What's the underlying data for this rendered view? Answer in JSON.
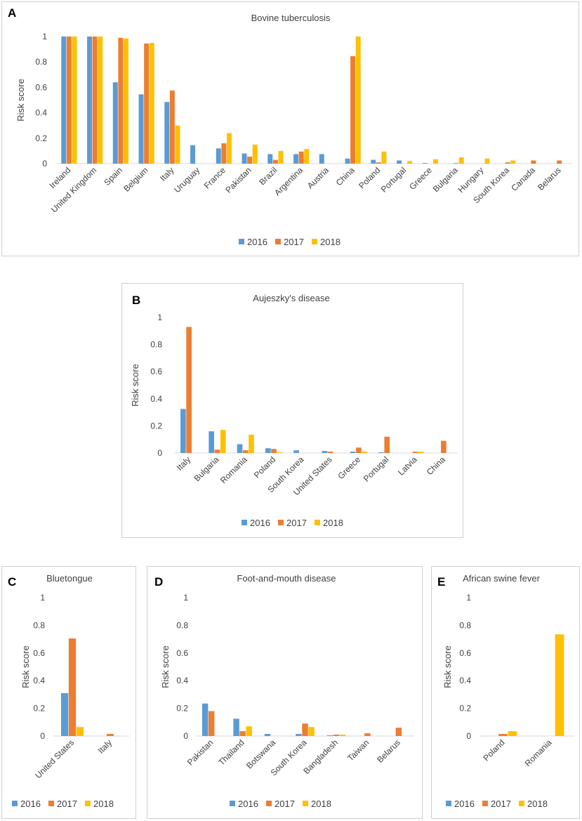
{
  "colors": {
    "2016": "#5b9bd5",
    "2017": "#ed7d31",
    "2018": "#ffc000"
  },
  "chart_data": [
    {
      "id": "A",
      "panel_label": "A",
      "type": "bar",
      "title": "Bovine tuberculosis",
      "ylabel": "Risk score",
      "xlabel": "",
      "ylim": [
        0,
        1
      ],
      "yticks": [
        "0",
        "0.2",
        "0.4",
        "0.6",
        "0.8",
        "1"
      ],
      "legend": [
        "2016",
        "2017",
        "2018"
      ],
      "categories": [
        "Ireland",
        "United Kingdom",
        "Spain",
        "Belgium",
        "Italy",
        "Uruguay",
        "France",
        "Pakistan",
        "Brazil",
        "Argentina",
        "Austria",
        "China",
        "Poland",
        "Portugal",
        "Greece",
        "Bulgaria",
        "Hungary",
        "South Korea",
        "Canada",
        "Belarus"
      ],
      "series": [
        {
          "name": "2016",
          "values": [
            1.0,
            1.0,
            0.64,
            0.545,
            0.485,
            0.145,
            0.12,
            0.08,
            0.075,
            0.075,
            0.075,
            0.04,
            0.03,
            0.025,
            0.005,
            0.0,
            0.0,
            0.0,
            0.0,
            0.0
          ]
        },
        {
          "name": "2017",
          "values": [
            1.0,
            1.0,
            0.99,
            0.945,
            0.575,
            0.0,
            0.16,
            0.055,
            0.03,
            0.095,
            0.0,
            0.845,
            0.01,
            0.0,
            0.0,
            0.005,
            0.0,
            0.01,
            0.025,
            0.025
          ]
        },
        {
          "name": "2018",
          "values": [
            1.0,
            1.0,
            0.985,
            0.95,
            0.3,
            0.0,
            0.24,
            0.15,
            0.1,
            0.115,
            0.0,
            1.0,
            0.095,
            0.02,
            0.035,
            0.05,
            0.04,
            0.025,
            0.0,
            0.0
          ]
        }
      ]
    },
    {
      "id": "B",
      "panel_label": "B",
      "type": "bar",
      "title": "Aujeszky's disease",
      "ylabel": "Risk score",
      "xlabel": "",
      "ylim": [
        0,
        1
      ],
      "yticks": [
        "0",
        "0.2",
        "0.4",
        "0.6",
        "0.8",
        "1"
      ],
      "legend": [
        "2016",
        "2017",
        "2018"
      ],
      "categories": [
        "Italy",
        "Bulgaria",
        "Romania",
        "Poland",
        "South Korea",
        "United States",
        "Greece",
        "Portugal",
        "Latvia",
        "China"
      ],
      "series": [
        {
          "name": "2016",
          "values": [
            0.325,
            0.16,
            0.065,
            0.035,
            0.02,
            0.015,
            0.01,
            0.005,
            0.0,
            0.0
          ]
        },
        {
          "name": "2017",
          "values": [
            0.93,
            0.025,
            0.02,
            0.03,
            0.0,
            0.01,
            0.04,
            0.12,
            0.01,
            0.09
          ]
        },
        {
          "name": "2018",
          "values": [
            0.0,
            0.17,
            0.135,
            0.005,
            0.0,
            0.0,
            0.01,
            0.0,
            0.01,
            0.0
          ]
        }
      ]
    },
    {
      "id": "C",
      "panel_label": "C",
      "type": "bar",
      "title": "Bluetongue",
      "ylabel": "Risk score",
      "xlabel": "",
      "ylim": [
        0,
        1
      ],
      "yticks": [
        "0",
        "0.2",
        "0.4",
        "0.6",
        "0.8",
        "1"
      ],
      "legend": [
        "2016",
        "2017",
        "2018"
      ],
      "categories": [
        "United States",
        "Italy"
      ],
      "series": [
        {
          "name": "2016",
          "values": [
            0.31,
            0.0
          ]
        },
        {
          "name": "2017",
          "values": [
            0.705,
            0.015
          ]
        },
        {
          "name": "2018",
          "values": [
            0.065,
            0.0
          ]
        }
      ]
    },
    {
      "id": "D",
      "panel_label": "D",
      "type": "bar",
      "title": "Foot-and-mouth disease",
      "ylabel": "Risk score",
      "xlabel": "",
      "ylim": [
        0,
        1
      ],
      "yticks": [
        "0",
        "0.2",
        "0.4",
        "0.6",
        "0.8",
        "1"
      ],
      "legend": [
        "2016",
        "2017",
        "2018"
      ],
      "categories": [
        "Pakistan",
        "Thailand",
        "Botswana",
        "South Korea",
        "Bangladesh",
        "Taiwan",
        "Belarus"
      ],
      "series": [
        {
          "name": "2016",
          "values": [
            0.235,
            0.125,
            0.015,
            0.015,
            0.005,
            0.0,
            0.0
          ]
        },
        {
          "name": "2017",
          "values": [
            0.18,
            0.035,
            0.0,
            0.09,
            0.01,
            0.02,
            0.06
          ]
        },
        {
          "name": "2018",
          "values": [
            0.0,
            0.07,
            0.0,
            0.065,
            0.01,
            0.0,
            0.0
          ]
        }
      ]
    },
    {
      "id": "E",
      "panel_label": "E",
      "type": "bar",
      "title": "African swine fever",
      "ylabel": "Risk score",
      "xlabel": "",
      "ylim": [
        0,
        1
      ],
      "yticks": [
        "0",
        "0.2",
        "0.4",
        "0.6",
        "0.8",
        "1"
      ],
      "legend": [
        "2016",
        "2017",
        "2018"
      ],
      "categories": [
        "Poland",
        "Romania"
      ],
      "series": [
        {
          "name": "2016",
          "values": [
            0.0,
            0.0
          ]
        },
        {
          "name": "2017",
          "values": [
            0.015,
            0.0
          ]
        },
        {
          "name": "2018",
          "values": [
            0.035,
            0.735
          ]
        }
      ]
    }
  ]
}
